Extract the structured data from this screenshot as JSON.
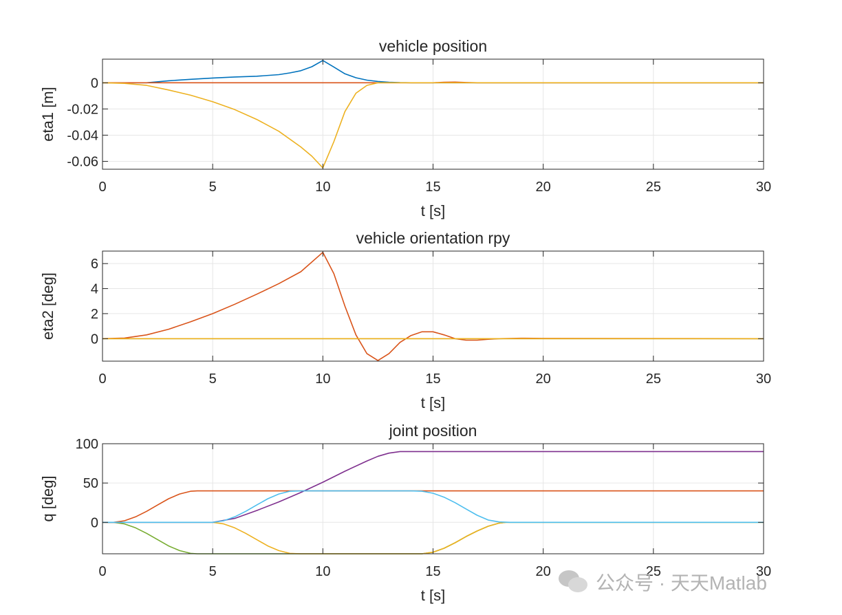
{
  "colors": {
    "blue": "#0072BD",
    "orange": "#D95319",
    "yellow": "#EDB120",
    "purple": "#7E2F8E",
    "green": "#77AC30",
    "cyan": "#4DBEEE"
  },
  "watermark": {
    "text": "公众号 · 天天Matlab",
    "icon": "wechat-chat-bubble-icon"
  },
  "chart_data": [
    {
      "type": "line",
      "title": "vehicle position",
      "xlabel": "t [s]",
      "ylabel": "eta1 [m]",
      "xlim": [
        0,
        30
      ],
      "ylim": [
        -0.066,
        0.018
      ],
      "xticks": [
        0,
        5,
        10,
        15,
        20,
        25,
        30
      ],
      "yticks": [
        0,
        -0.02,
        -0.04,
        -0.06
      ],
      "ytick_labels": [
        "0",
        "-0.02",
        "-0.04",
        "-0.06"
      ],
      "grid": true,
      "series": [
        {
          "color": "blue",
          "x": [
            0,
            1,
            2,
            3,
            4,
            5,
            6,
            7,
            8,
            8.5,
            9,
            9.5,
            10,
            10.5,
            11,
            11.5,
            12,
            12.5,
            13,
            13.5,
            14,
            15,
            16,
            30
          ],
          "y": [
            0,
            0,
            0,
            0.0015,
            0.0026,
            0.0036,
            0.0044,
            0.005,
            0.0062,
            0.0075,
            0.0092,
            0.0122,
            0.017,
            0.012,
            0.0068,
            0.0038,
            0.002,
            0.001,
            0.0004,
            0.0001,
            0,
            0,
            0,
            0
          ]
        },
        {
          "color": "orange",
          "x": [
            0,
            15,
            15.5,
            16,
            16.5,
            17,
            30
          ],
          "y": [
            0,
            0,
            0.0004,
            0.0005,
            0.0002,
            0,
            0
          ]
        },
        {
          "color": "yellow",
          "x": [
            0,
            1,
            2,
            3,
            4,
            5,
            6,
            7,
            8,
            9,
            9.5,
            10,
            10.5,
            11,
            11.5,
            12,
            12.5,
            13,
            14,
            30
          ],
          "y": [
            0,
            -0.0005,
            -0.002,
            -0.0055,
            -0.0095,
            -0.0145,
            -0.0205,
            -0.028,
            -0.037,
            -0.049,
            -0.056,
            -0.065,
            -0.045,
            -0.022,
            -0.008,
            -0.002,
            0,
            0,
            0,
            0
          ]
        }
      ]
    },
    {
      "type": "line",
      "title": "vehicle orientation rpy",
      "xlabel": "t [s]",
      "ylabel": "eta2 [deg]",
      "xlim": [
        0,
        30
      ],
      "ylim": [
        -1.8,
        7
      ],
      "xticks": [
        0,
        5,
        10,
        15,
        20,
        25,
        30
      ],
      "yticks": [
        0,
        2,
        4,
        6
      ],
      "ytick_labels": [
        "0",
        "2",
        "4",
        "6"
      ],
      "grid": true,
      "series": [
        {
          "color": "orange",
          "x": [
            0,
            1,
            2,
            3,
            4,
            5,
            6,
            7,
            8,
            9,
            10,
            10.5,
            11,
            11.5,
            12,
            12.5,
            13,
            13.5,
            14,
            14.5,
            15,
            15.5,
            16,
            16.5,
            17,
            17.5,
            18,
            19,
            20,
            30
          ],
          "y": [
            0,
            0.05,
            0.3,
            0.75,
            1.35,
            2.0,
            2.75,
            3.55,
            4.4,
            5.35,
            6.9,
            5.2,
            2.6,
            0.3,
            -1.2,
            -1.75,
            -1.2,
            -0.3,
            0.25,
            0.55,
            0.55,
            0.3,
            0,
            -0.12,
            -0.12,
            -0.05,
            0,
            0.03,
            0.02,
            0
          ]
        },
        {
          "color": "green",
          "x": [
            0,
            10,
            30
          ],
          "y": [
            0,
            0,
            0
          ]
        },
        {
          "color": "yellow",
          "x": [
            0,
            30
          ],
          "y": [
            0,
            0
          ]
        }
      ]
    },
    {
      "type": "line",
      "title": "joint position",
      "xlabel": "t [s]",
      "ylabel": "q [deg]",
      "xlim": [
        0,
        30
      ],
      "ylim": [
        -40,
        100
      ],
      "xticks": [
        0,
        5,
        10,
        15,
        20,
        25,
        30
      ],
      "yticks": [
        100,
        50,
        0
      ],
      "ytick_labels": [
        "100",
        "50",
        "0"
      ],
      "grid": true,
      "series": [
        {
          "color": "orange",
          "x": [
            0,
            0.5,
            1,
            1.5,
            2,
            2.5,
            3,
            3.5,
            4,
            4.3,
            30
          ],
          "y": [
            0,
            0,
            2,
            7,
            14,
            22,
            30,
            36,
            39.5,
            40,
            40
          ]
        },
        {
          "color": "green",
          "x": [
            0,
            0.5,
            1,
            1.5,
            2,
            2.5,
            3,
            3.5,
            4,
            4.3,
            14.5,
            15,
            15.5,
            16,
            16.5,
            17,
            17.5,
            18,
            18.3,
            30
          ],
          "y": [
            0,
            0,
            -2,
            -7,
            -14,
            -22,
            -30,
            -36,
            -39.5,
            -40,
            -40,
            -38,
            -33,
            -26,
            -18,
            -11,
            -5,
            -1,
            0,
            0
          ]
        },
        {
          "color": "yellow",
          "x": [
            0,
            5,
            5.5,
            6,
            6.5,
            7,
            7.5,
            8,
            8.5,
            9,
            14.5,
            15,
            15.5,
            16,
            16.5,
            17,
            17.5,
            18,
            18.3,
            30
          ],
          "y": [
            0,
            0,
            -2,
            -7,
            -14,
            -22,
            -30,
            -36,
            -39.5,
            -40,
            -40,
            -38,
            -33,
            -26,
            -18,
            -11,
            -5,
            -1,
            0,
            0
          ]
        },
        {
          "color": "purple",
          "x": [
            0,
            5,
            6,
            7,
            8,
            9,
            10,
            11,
            12,
            12.5,
            13,
            13.5,
            14,
            30
          ],
          "y": [
            0,
            0,
            5,
            15,
            26,
            38,
            51,
            65,
            78,
            84,
            88,
            90,
            90,
            90
          ]
        },
        {
          "color": "cyan",
          "x": [
            0,
            5,
            5.5,
            6,
            6.5,
            7,
            7.5,
            8,
            8.5,
            9,
            14,
            14.5,
            15,
            15.5,
            16,
            16.5,
            17,
            17.5,
            18,
            18.5,
            30
          ],
          "y": [
            0,
            0,
            2,
            7,
            14,
            22,
            30,
            36,
            39.5,
            40,
            40,
            39.5,
            37,
            32,
            25,
            17,
            9,
            3,
            0.5,
            0,
            0
          ]
        }
      ]
    }
  ]
}
